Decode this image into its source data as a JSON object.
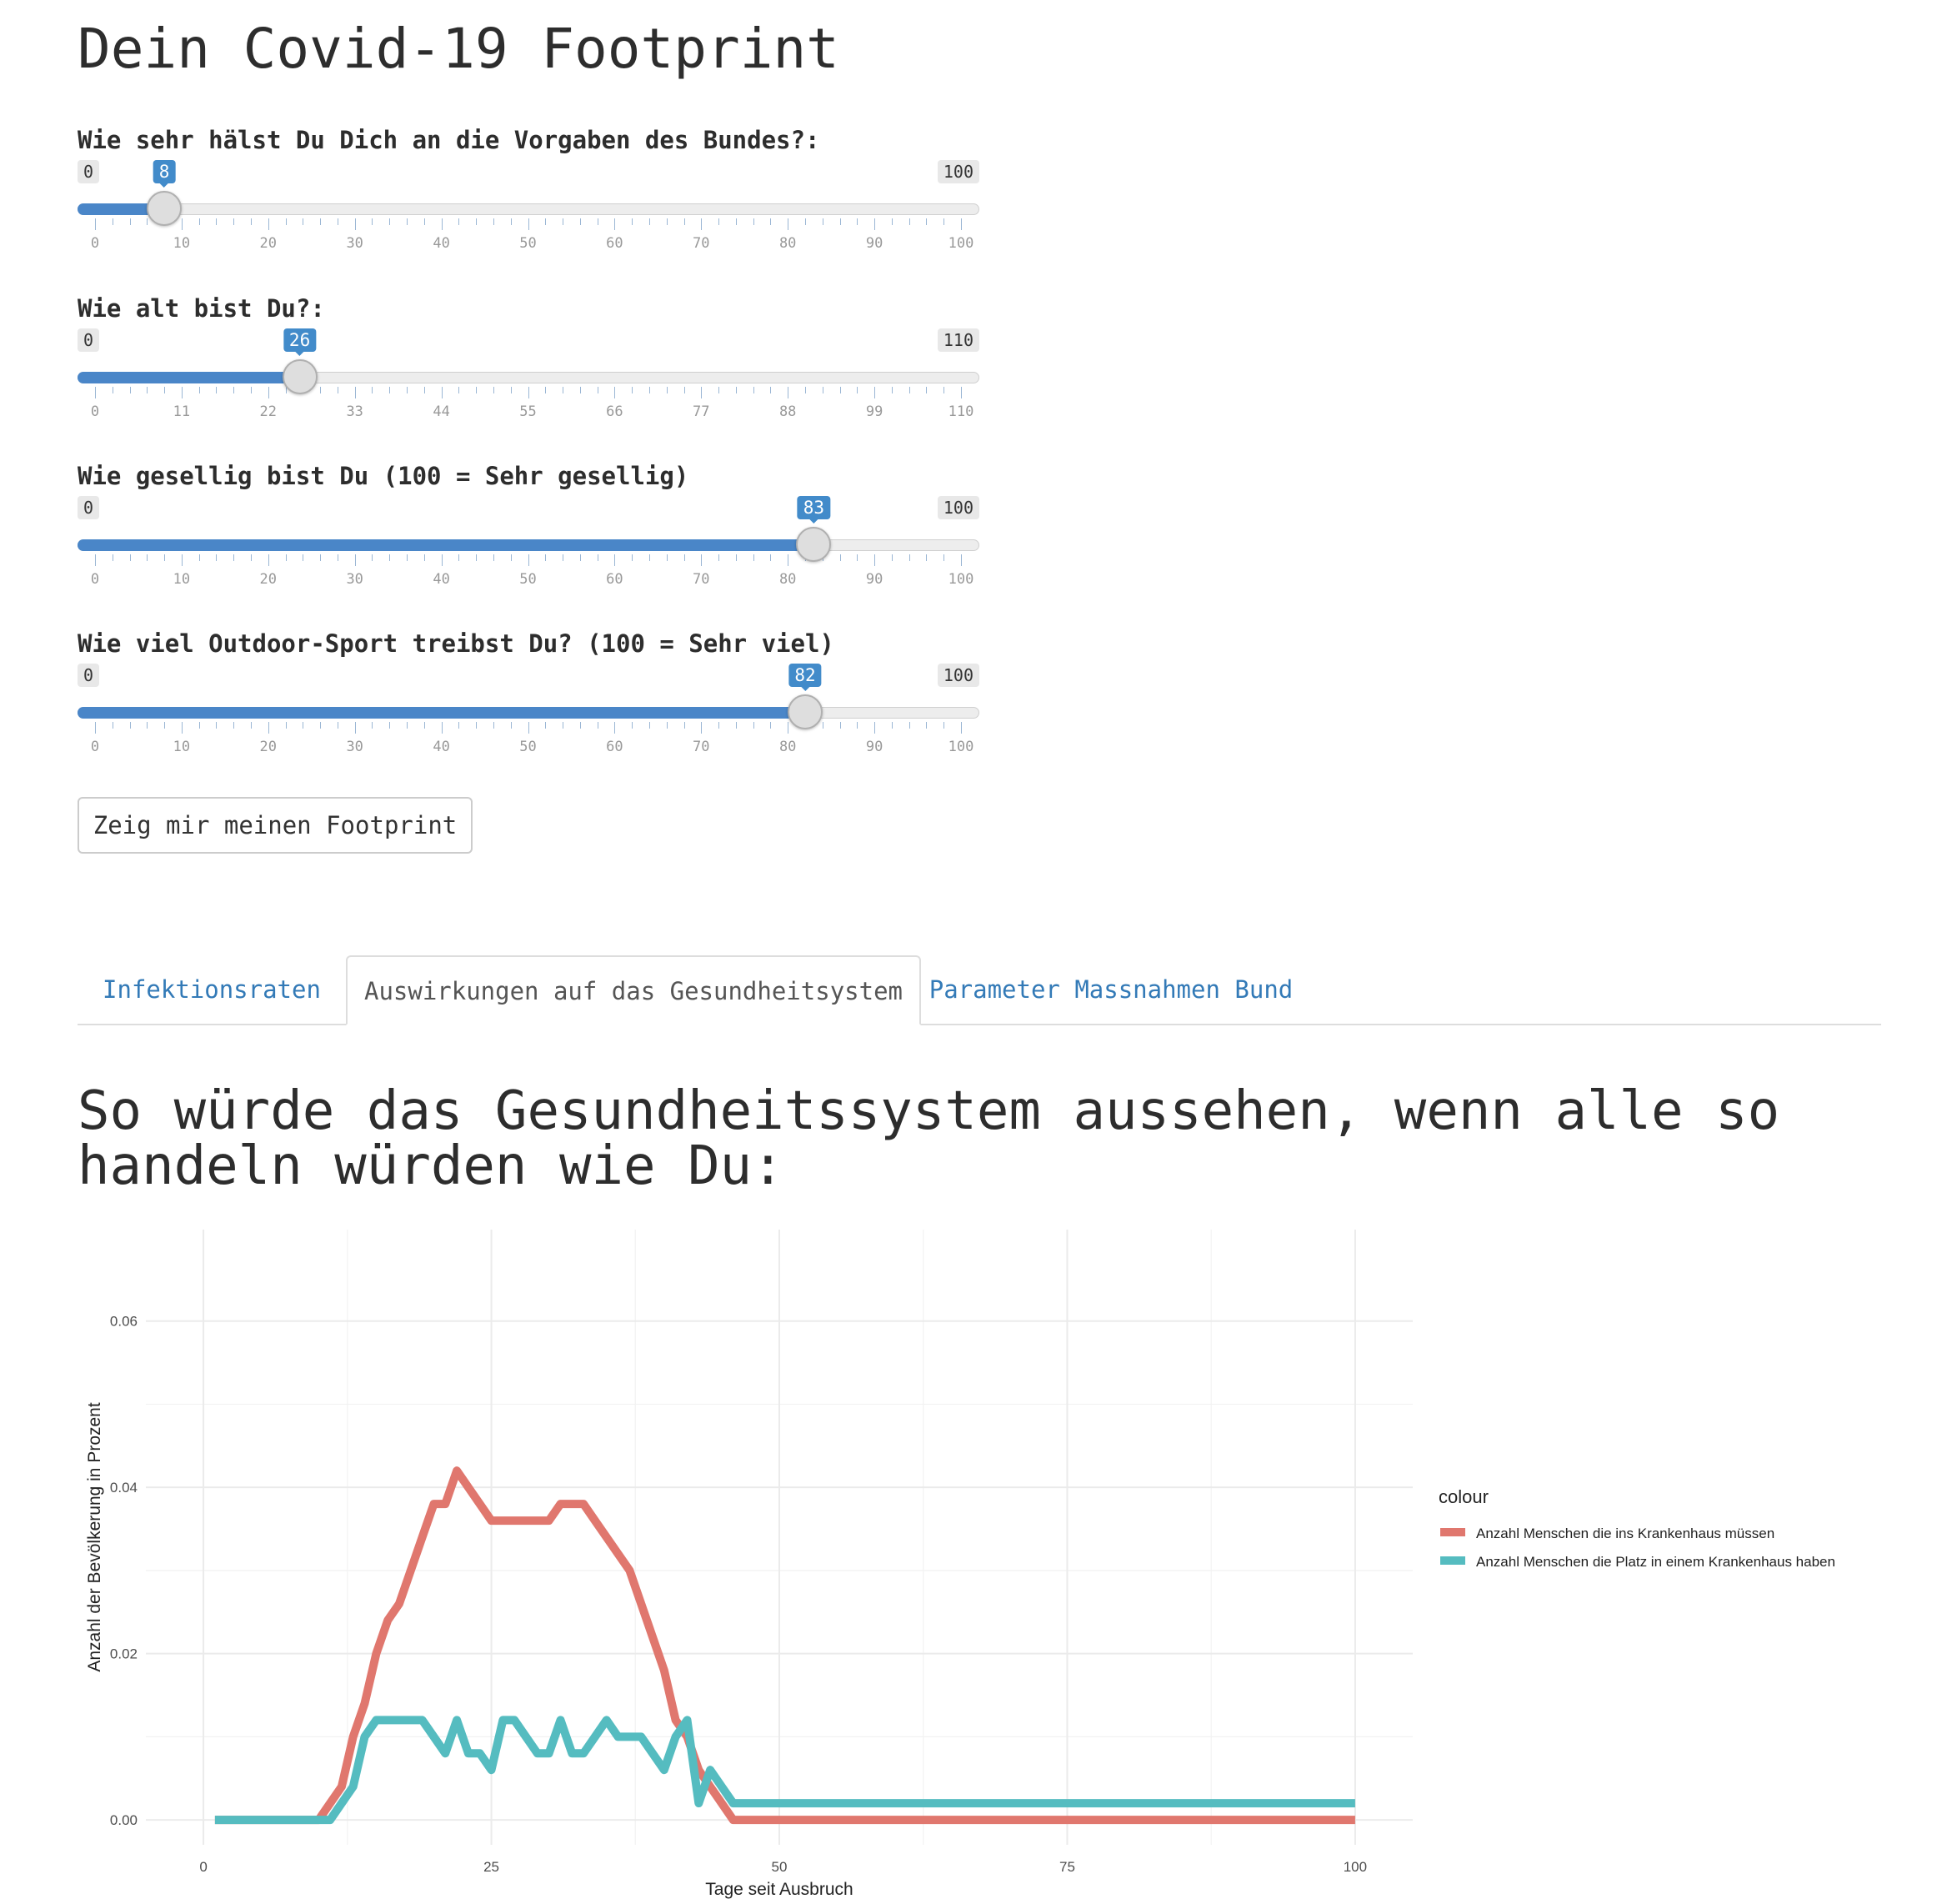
{
  "page": {
    "title": "Dein Covid-19 Footprint"
  },
  "sliders": [
    {
      "label": "Wie sehr hälst Du Dich an die Vorgaben des Bundes?:",
      "min": 0,
      "max": 100,
      "value": 8,
      "ticks": [
        "0",
        "10",
        "20",
        "30",
        "40",
        "50",
        "60",
        "70",
        "80",
        "90",
        "100"
      ]
    },
    {
      "label": "Wie alt bist Du?:",
      "min": 0,
      "max": 110,
      "value": 26,
      "ticks": [
        "0",
        "11",
        "22",
        "33",
        "44",
        "55",
        "66",
        "77",
        "88",
        "99",
        "110"
      ]
    },
    {
      "label": "Wie gesellig bist Du (100 = Sehr gesellig)",
      "min": 0,
      "max": 100,
      "value": 83,
      "ticks": [
        "0",
        "10",
        "20",
        "30",
        "40",
        "50",
        "60",
        "70",
        "80",
        "90",
        "100"
      ]
    },
    {
      "label": "Wie viel Outdoor-Sport treibst Du? (100 = Sehr viel)",
      "min": 0,
      "max": 100,
      "value": 82,
      "ticks": [
        "0",
        "10",
        "20",
        "30",
        "40",
        "50",
        "60",
        "70",
        "80",
        "90",
        "100"
      ]
    }
  ],
  "action_button": {
    "label": "Zeig mir meinen Footprint"
  },
  "tabs": [
    {
      "label": "Infektionsraten",
      "active": false
    },
    {
      "label": "Auswirkungen auf das Gesundheitsystem",
      "active": true
    },
    {
      "label": "Parameter Massnahmen Bund",
      "active": false
    }
  ],
  "section": {
    "heading": "So würde das Gesundheitssystem aussehen, wenn alle so handeln würden wie Du:"
  },
  "chart_data": {
    "type": "line",
    "title": "",
    "xlabel": "Tage seit Ausbruch",
    "ylabel": "Anzahl der Bevölkerung in Prozent",
    "xlim": [
      -5,
      105
    ],
    "ylim": [
      -0.003,
      0.071
    ],
    "xticks": [
      0,
      25,
      50,
      75,
      100
    ],
    "yticks": [
      0.0,
      0.02,
      0.04,
      0.06
    ],
    "ytick_labels": [
      "0.00",
      "0.02",
      "0.04",
      "0.06"
    ],
    "grid": true,
    "legend_title": "colour",
    "legend_position": "right",
    "series": [
      {
        "name": "Anzahl Menschen die ins Krankenhaus müssen",
        "color": "#e0776e",
        "x": [
          1,
          10,
          11,
          12,
          13,
          14,
          15,
          16,
          17,
          18,
          19,
          20,
          21,
          22,
          23,
          24,
          25,
          26,
          27,
          28,
          29,
          30,
          31,
          32,
          33,
          34,
          35,
          36,
          37,
          38,
          39,
          40,
          41,
          42,
          43,
          44,
          45,
          46,
          47,
          50,
          60,
          70,
          80,
          90,
          100
        ],
        "y": [
          0,
          0,
          0.002,
          0.004,
          0.01,
          0.014,
          0.02,
          0.024,
          0.026,
          0.03,
          0.034,
          0.038,
          0.038,
          0.042,
          0.04,
          0.038,
          0.036,
          0.036,
          0.036,
          0.036,
          0.036,
          0.036,
          0.038,
          0.038,
          0.038,
          0.036,
          0.034,
          0.032,
          0.03,
          0.026,
          0.022,
          0.018,
          0.012,
          0.01,
          0.006,
          0.004,
          0.002,
          0,
          0,
          0,
          0,
          0,
          0,
          0,
          0
        ]
      },
      {
        "name": "Anzahl Menschen die Platz in einem Krankenhaus haben",
        "color": "#55bcc0",
        "x": [
          1,
          10,
          11,
          12,
          13,
          14,
          15,
          16,
          17,
          18,
          19,
          20,
          21,
          22,
          23,
          24,
          25,
          26,
          27,
          28,
          29,
          30,
          31,
          32,
          33,
          34,
          35,
          36,
          37,
          38,
          39,
          40,
          41,
          42,
          43,
          44,
          45,
          46,
          47,
          50,
          60,
          70,
          80,
          90,
          100
        ],
        "y": [
          0,
          0,
          0,
          0.002,
          0.004,
          0.01,
          0.012,
          0.012,
          0.012,
          0.012,
          0.012,
          0.01,
          0.008,
          0.012,
          0.008,
          0.008,
          0.006,
          0.012,
          0.012,
          0.01,
          0.008,
          0.008,
          0.012,
          0.008,
          0.008,
          0.01,
          0.012,
          0.01,
          0.01,
          0.01,
          0.008,
          0.006,
          0.01,
          0.012,
          0.002,
          0.006,
          0.004,
          0.002,
          0.002,
          0.002,
          0.002,
          0.002,
          0.002,
          0.002,
          0.002
        ]
      }
    ]
  }
}
